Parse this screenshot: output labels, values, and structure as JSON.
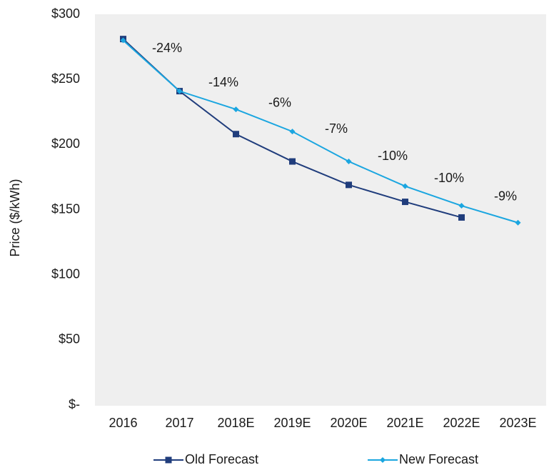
{
  "chart_data": {
    "type": "line",
    "y_label": "Price ($/kWh)",
    "categories": [
      "2016",
      "2017",
      "2018E",
      "2019E",
      "2020E",
      "2021E",
      "2022E",
      "2023E"
    ],
    "series": [
      {
        "name": "Old Forecast",
        "color": "#203d7c",
        "marker": "square",
        "values": [
          281,
          241,
          208,
          187,
          169,
          156,
          144,
          null
        ]
      },
      {
        "name": "New Forecast",
        "color": "#1ba6e0",
        "marker": "diamond",
        "values": [
          280,
          241,
          227,
          210,
          187,
          168,
          153,
          140
        ]
      }
    ],
    "annotations": [
      "-24%",
      "-14%",
      "-6%",
      "-7%",
      "-10%",
      "-10%",
      "-9%"
    ],
    "ylim": [
      0,
      300
    ],
    "yticks": [
      {
        "value": 0,
        "label": "$-"
      },
      {
        "value": 50,
        "label": "$50"
      },
      {
        "value": 100,
        "label": "$100"
      },
      {
        "value": 150,
        "label": "$150"
      },
      {
        "value": 200,
        "label": "$200"
      },
      {
        "value": 250,
        "label": "$250"
      },
      {
        "value": 300,
        "label": "$300"
      }
    ],
    "legend": "bottom"
  }
}
